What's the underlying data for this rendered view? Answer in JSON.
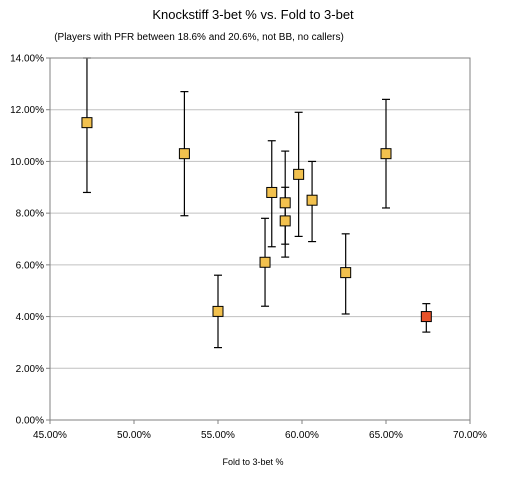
{
  "chart_data": {
    "type": "scatter",
    "title": "Knockstiff 3-bet % vs. Fold to 3-bet",
    "subtitle": "(Players with PFR between 18.6% and 20.6%, not BB, no callers)",
    "xlabel": "Fold to 3-bet %",
    "ylabel": "",
    "xlim": [
      0.45,
      0.7
    ],
    "ylim": [
      0.0,
      0.14
    ],
    "x_ticks": [
      0.45,
      0.5,
      0.55,
      0.6,
      0.65,
      0.7
    ],
    "x_tick_labels": [
      "45.00%",
      "50.00%",
      "55.00%",
      "60.00%",
      "65.00%",
      "70.00%"
    ],
    "y_ticks": [
      0.0,
      0.02,
      0.04,
      0.06,
      0.08,
      0.1,
      0.12,
      0.14
    ],
    "y_tick_labels": [
      "0.00%",
      "2.00%",
      "4.00%",
      "6.00%",
      "8.00%",
      "10.00%",
      "12.00%",
      "14.00%"
    ],
    "grid": "horizontal",
    "legend": "none",
    "colors": {
      "point": "#F2C14E",
      "highlight": "#E8522A",
      "marker_stroke": "#000000",
      "grid": "#C0C0C0"
    },
    "points": [
      {
        "x": 0.472,
        "y": 0.115,
        "y_low": 0.088,
        "y_high": 0.14
      },
      {
        "x": 0.53,
        "y": 0.103,
        "y_low": 0.079,
        "y_high": 0.127
      },
      {
        "x": 0.55,
        "y": 0.042,
        "y_low": 0.028,
        "y_high": 0.056
      },
      {
        "x": 0.578,
        "y": 0.061,
        "y_low": 0.044,
        "y_high": 0.078
      },
      {
        "x": 0.582,
        "y": 0.088,
        "y_low": 0.067,
        "y_high": 0.108
      },
      {
        "x": 0.59,
        "y": 0.084,
        "y_low": 0.068,
        "y_high": 0.104
      },
      {
        "x": 0.59,
        "y": 0.077,
        "y_low": 0.063,
        "y_high": 0.09
      },
      {
        "x": 0.598,
        "y": 0.095,
        "y_low": 0.071,
        "y_high": 0.119
      },
      {
        "x": 0.606,
        "y": 0.085,
        "y_low": 0.069,
        "y_high": 0.1
      },
      {
        "x": 0.626,
        "y": 0.057,
        "y_low": 0.041,
        "y_high": 0.072
      },
      {
        "x": 0.65,
        "y": 0.103,
        "y_low": 0.082,
        "y_high": 0.124
      },
      {
        "x": 0.674,
        "y": 0.04,
        "y_low": 0.034,
        "y_high": 0.045,
        "highlight": true
      }
    ]
  }
}
